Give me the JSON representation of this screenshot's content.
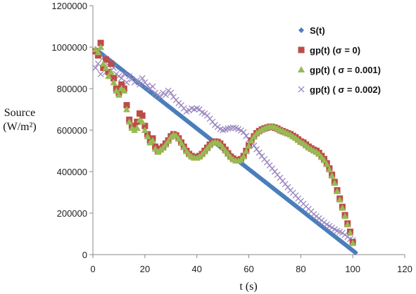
{
  "chart_data": {
    "type": "scatter",
    "title": "",
    "xlabel": "t (s)",
    "ylabel": [
      "Source",
      "(W/m²)"
    ],
    "xlim": [
      0,
      120
    ],
    "ylim": [
      0,
      1200000
    ],
    "xticks": [
      0,
      20,
      40,
      60,
      80,
      100,
      120
    ],
    "yticks": [
      0,
      200000,
      400000,
      600000,
      800000,
      1000000,
      1200000
    ],
    "xtick_labels": [
      "0",
      "20",
      "40",
      "60",
      "80",
      "100",
      "120"
    ],
    "ytick_labels": [
      "0",
      "200000",
      "400000",
      "600000",
      "800000",
      "1000000",
      "1200000"
    ],
    "grid": false,
    "legend_position": "right",
    "series": [
      {
        "name": "S(t)",
        "marker": "diamond",
        "color": "#4a7ebb",
        "description_points": [
          [
            1,
            990000
          ],
          [
            101,
            10000
          ]
        ],
        "generator": "linear",
        "step": 0.5,
        "x_start": 1,
        "x_end": 101
      },
      {
        "name": "gp(t) (σ = 0)",
        "marker": "square",
        "color": "#be4b48",
        "points": [
          [
            1,
            980000
          ],
          [
            2,
            960000
          ],
          [
            3,
            1020000
          ],
          [
            4,
            900000
          ],
          [
            5,
            940000
          ],
          [
            6,
            880000
          ],
          [
            7,
            920000
          ],
          [
            8,
            850000
          ],
          [
            9,
            800000
          ],
          [
            10,
            780000
          ],
          [
            11,
            820000
          ],
          [
            12,
            800000
          ],
          [
            13,
            720000
          ],
          [
            14,
            650000
          ],
          [
            15,
            620000
          ],
          [
            16,
            620000
          ],
          [
            17,
            640000
          ],
          [
            18,
            680000
          ],
          [
            19,
            670000
          ],
          [
            20,
            620000
          ],
          [
            21,
            580000
          ],
          [
            22,
            550000
          ],
          [
            23,
            560000
          ],
          [
            24,
            520000
          ],
          [
            25,
            500000
          ],
          [
            26,
            510000
          ],
          [
            27,
            520000
          ],
          [
            28,
            535000
          ],
          [
            29,
            550000
          ],
          [
            30,
            570000
          ],
          [
            31,
            580000
          ],
          [
            32,
            575000
          ],
          [
            33,
            560000
          ],
          [
            34,
            540000
          ],
          [
            35,
            520000
          ],
          [
            36,
            500000
          ],
          [
            37,
            485000
          ],
          [
            38,
            475000
          ],
          [
            39,
            470000
          ],
          [
            40,
            470000
          ],
          [
            41,
            475000
          ],
          [
            42,
            485000
          ],
          [
            43,
            500000
          ],
          [
            44,
            515000
          ],
          [
            45,
            530000
          ],
          [
            46,
            540000
          ],
          [
            47,
            545000
          ],
          [
            48,
            543000
          ],
          [
            49,
            535000
          ],
          [
            50,
            520000
          ],
          [
            51,
            505000
          ],
          [
            52,
            488000
          ],
          [
            53,
            472000
          ],
          [
            54,
            462000
          ],
          [
            55,
            456000
          ],
          [
            56,
            455000
          ],
          [
            57,
            460000
          ],
          [
            58,
            475000
          ],
          [
            59,
            500000
          ],
          [
            60,
            525000
          ],
          [
            61,
            550000
          ],
          [
            62,
            570000
          ],
          [
            63,
            585000
          ],
          [
            64,
            595000
          ],
          [
            65,
            603000
          ],
          [
            66,
            608000
          ],
          [
            67,
            612000
          ],
          [
            68,
            616000
          ],
          [
            69,
            616000
          ],
          [
            70,
            612000
          ],
          [
            71,
            607000
          ],
          [
            72,
            600000
          ],
          [
            73,
            595000
          ],
          [
            74,
            590000
          ],
          [
            75,
            585000
          ],
          [
            76,
            580000
          ],
          [
            77,
            572000
          ],
          [
            78,
            565000
          ],
          [
            79,
            555000
          ],
          [
            80,
            545000
          ],
          [
            81,
            540000
          ],
          [
            82,
            530000
          ],
          [
            83,
            520000
          ],
          [
            84,
            512000
          ],
          [
            85,
            505000
          ],
          [
            86,
            500000
          ],
          [
            87,
            490000
          ],
          [
            88,
            475000
          ],
          [
            89,
            460000
          ],
          [
            90,
            440000
          ],
          [
            91,
            415000
          ],
          [
            92,
            385000
          ],
          [
            93,
            350000
          ],
          [
            94,
            310000
          ],
          [
            95,
            270000
          ],
          [
            96,
            230000
          ],
          [
            97,
            190000
          ],
          [
            98,
            150000
          ],
          [
            99,
            110000
          ],
          [
            100,
            60000
          ]
        ]
      },
      {
        "name": "gp(t) ( σ = 0.001)",
        "marker": "triangle",
        "color": "#98b954",
        "points": [
          [
            1,
            990000
          ],
          [
            2,
            975000
          ],
          [
            3,
            1000000
          ],
          [
            4,
            920000
          ],
          [
            5,
            900000
          ],
          [
            6,
            860000
          ],
          [
            7,
            880000
          ],
          [
            8,
            830000
          ],
          [
            9,
            790000
          ],
          [
            10,
            770000
          ],
          [
            11,
            800000
          ],
          [
            12,
            790000
          ],
          [
            13,
            700000
          ],
          [
            14,
            640000
          ],
          [
            15,
            610000
          ],
          [
            16,
            600000
          ],
          [
            17,
            610000
          ],
          [
            18,
            650000
          ],
          [
            19,
            640000
          ],
          [
            20,
            600000
          ],
          [
            21,
            570000
          ],
          [
            22,
            540000
          ],
          [
            23,
            550000
          ],
          [
            24,
            510000
          ],
          [
            25,
            495000
          ],
          [
            26,
            505000
          ],
          [
            27,
            515000
          ],
          [
            28,
            530000
          ],
          [
            29,
            548000
          ],
          [
            30,
            567000
          ],
          [
            31,
            578000
          ],
          [
            32,
            574000
          ],
          [
            33,
            558000
          ],
          [
            34,
            538000
          ],
          [
            35,
            518000
          ],
          [
            36,
            498000
          ],
          [
            37,
            483000
          ],
          [
            38,
            472000
          ],
          [
            39,
            466000
          ],
          [
            40,
            466000
          ],
          [
            41,
            472000
          ],
          [
            42,
            483000
          ],
          [
            43,
            497000
          ],
          [
            44,
            512000
          ],
          [
            45,
            527000
          ],
          [
            46,
            538000
          ],
          [
            47,
            542000
          ],
          [
            48,
            540000
          ],
          [
            49,
            532000
          ],
          [
            50,
            517000
          ],
          [
            51,
            501000
          ],
          [
            52,
            485000
          ],
          [
            53,
            470000
          ],
          [
            54,
            459000
          ],
          [
            55,
            453000
          ],
          [
            56,
            452000
          ],
          [
            57,
            458000
          ],
          [
            58,
            473000
          ],
          [
            59,
            498000
          ],
          [
            60,
            524000
          ],
          [
            61,
            549000
          ],
          [
            62,
            569000
          ],
          [
            63,
            584000
          ],
          [
            64,
            594000
          ],
          [
            65,
            603000
          ],
          [
            66,
            609000
          ],
          [
            67,
            614000
          ],
          [
            68,
            618000
          ],
          [
            69,
            618000
          ],
          [
            70,
            614000
          ],
          [
            71,
            608000
          ],
          [
            72,
            601000
          ],
          [
            73,
            596000
          ],
          [
            74,
            590000
          ],
          [
            75,
            584000
          ],
          [
            76,
            578000
          ],
          [
            77,
            570000
          ],
          [
            78,
            562000
          ],
          [
            79,
            552000
          ],
          [
            80,
            542000
          ],
          [
            81,
            536000
          ],
          [
            82,
            526000
          ],
          [
            83,
            516000
          ],
          [
            84,
            508000
          ],
          [
            85,
            501000
          ],
          [
            86,
            495000
          ],
          [
            87,
            485000
          ],
          [
            88,
            470000
          ],
          [
            89,
            455000
          ],
          [
            90,
            435000
          ],
          [
            91,
            410000
          ],
          [
            92,
            380000
          ],
          [
            93,
            345000
          ],
          [
            94,
            305000
          ],
          [
            95,
            265000
          ],
          [
            96,
            225000
          ],
          [
            97,
            185000
          ],
          [
            98,
            145000
          ],
          [
            99,
            105000
          ],
          [
            100,
            55000
          ]
        ]
      },
      {
        "name": "gp(t) ( σ = 0.002)",
        "marker": "x",
        "color": "#9b87bf",
        "points": [
          [
            1,
            900000
          ],
          [
            2,
            920000
          ],
          [
            3,
            870000
          ],
          [
            4,
            950000
          ],
          [
            5,
            880000
          ],
          [
            6,
            910000
          ],
          [
            7,
            860000
          ],
          [
            8,
            900000
          ],
          [
            9,
            870000
          ],
          [
            10,
            860000
          ],
          [
            11,
            850000
          ],
          [
            12,
            870000
          ],
          [
            13,
            830000
          ],
          [
            14,
            860000
          ],
          [
            15,
            845000
          ],
          [
            16,
            830000
          ],
          [
            17,
            840000
          ],
          [
            18,
            820000
          ],
          [
            19,
            850000
          ],
          [
            20,
            830000
          ],
          [
            21,
            815000
          ],
          [
            22,
            800000
          ],
          [
            23,
            810000
          ],
          [
            24,
            780000
          ],
          [
            25,
            770000
          ],
          [
            26,
            760000
          ],
          [
            27,
            780000
          ],
          [
            28,
            770000
          ],
          [
            29,
            790000
          ],
          [
            30,
            780000
          ],
          [
            31,
            760000
          ],
          [
            32,
            745000
          ],
          [
            33,
            730000
          ],
          [
            34,
            720000
          ],
          [
            35,
            705000
          ],
          [
            36,
            690000
          ],
          [
            37,
            695000
          ],
          [
            38,
            705000
          ],
          [
            39,
            700000
          ],
          [
            40,
            705000
          ],
          [
            41,
            700000
          ],
          [
            42,
            685000
          ],
          [
            43,
            680000
          ],
          [
            44,
            670000
          ],
          [
            45,
            655000
          ],
          [
            46,
            640000
          ],
          [
            47,
            625000
          ],
          [
            48,
            615000
          ],
          [
            49,
            605000
          ],
          [
            50,
            600000
          ],
          [
            51,
            603000
          ],
          [
            52,
            608000
          ],
          [
            53,
            610000
          ],
          [
            54,
            612000
          ],
          [
            55,
            610000
          ],
          [
            56,
            605000
          ],
          [
            57,
            598000
          ],
          [
            58,
            590000
          ],
          [
            59,
            572000
          ],
          [
            60,
            555000
          ],
          [
            61,
            540000
          ],
          [
            62,
            525000
          ],
          [
            63,
            508000
          ],
          [
            64,
            492000
          ],
          [
            65,
            475000
          ],
          [
            66,
            460000
          ],
          [
            67,
            445000
          ],
          [
            68,
            430000
          ],
          [
            69,
            415000
          ],
          [
            70,
            400000
          ],
          [
            71,
            385000
          ],
          [
            72,
            370000
          ],
          [
            73,
            355000
          ],
          [
            74,
            340000
          ],
          [
            75,
            325000
          ],
          [
            76,
            310000
          ],
          [
            77,
            298000
          ],
          [
            78,
            285000
          ],
          [
            79,
            270000
          ],
          [
            80,
            258000
          ],
          [
            81,
            245000
          ],
          [
            82,
            232000
          ],
          [
            83,
            220000
          ],
          [
            84,
            208000
          ],
          [
            85,
            195000
          ],
          [
            86,
            185000
          ],
          [
            87,
            175000
          ],
          [
            88,
            165000
          ],
          [
            89,
            155000
          ],
          [
            90,
            145000
          ],
          [
            91,
            138000
          ],
          [
            92,
            130000
          ],
          [
            93,
            122000
          ],
          [
            94,
            115000
          ],
          [
            95,
            110000
          ],
          [
            96,
            105000
          ],
          [
            97,
            95000
          ],
          [
            98,
            85000
          ],
          [
            99,
            75000
          ],
          [
            100,
            70000
          ]
        ]
      }
    ]
  }
}
